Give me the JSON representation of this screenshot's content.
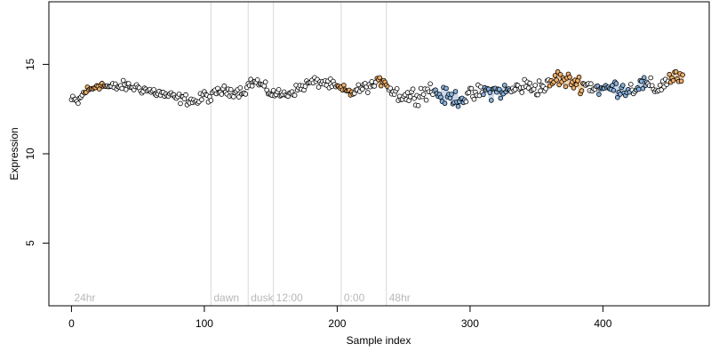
{
  "chart_data": {
    "type": "scatter",
    "title": "",
    "xlabel": "Sample index",
    "ylabel": "Expression",
    "xlim": [
      -17,
      480
    ],
    "ylim": [
      1.5,
      18.5
    ],
    "x_ticks": [
      0,
      100,
      200,
      300,
      400
    ],
    "y_ticks": [
      5,
      10,
      15
    ],
    "grid": false,
    "legend": "none",
    "colors": {
      "point_outline": "#000000",
      "point_plain": "#ffffff",
      "point_orange": "#f2b06a",
      "point_blue": "#8ab4e0",
      "band_orange": "#e8b070",
      "band_blue": "#9ab8e0",
      "annotation_line": "#d8d8d8",
      "annotation_text": "#b8b8b8"
    },
    "annotations": [
      {
        "x": 0,
        "label": "24hr",
        "line": false
      },
      {
        "x": 105,
        "label": "dawn",
        "line": true
      },
      {
        "x": 133,
        "label": "dusk",
        "line": true
      },
      {
        "x": 152,
        "label": "12:00",
        "line": true
      },
      {
        "x": 203,
        "label": "0:00",
        "line": true
      },
      {
        "x": 237,
        "label": "48hr",
        "line": true
      }
    ],
    "highlight_segments": [
      {
        "from": 10,
        "to": 26,
        "color": "orange"
      },
      {
        "from": 200,
        "to": 212,
        "color": "orange"
      },
      {
        "from": 230,
        "to": 238,
        "color": "orange"
      },
      {
        "from": 274,
        "to": 296,
        "color": "blue"
      },
      {
        "from": 310,
        "to": 330,
        "color": "blue"
      },
      {
        "from": 360,
        "to": 385,
        "color": "orange"
      },
      {
        "from": 396,
        "to": 420,
        "color": "blue"
      },
      {
        "from": 425,
        "to": 433,
        "color": "blue"
      },
      {
        "from": 450,
        "to": 460,
        "color": "orange"
      }
    ],
    "series": [
      {
        "anchors_x": [
          0,
          5,
          10,
          15,
          20,
          25,
          30,
          40,
          50,
          60,
          70,
          80,
          90,
          95,
          100,
          105,
          110,
          120,
          130,
          135,
          140,
          150,
          160,
          170,
          180,
          190,
          200,
          210,
          220,
          230,
          235,
          240,
          250,
          260,
          270,
          280,
          290,
          300,
          310,
          320,
          330,
          340,
          350,
          360,
          365,
          370,
          380,
          390,
          400,
          410,
          420,
          430,
          440,
          450,
          455,
          460
        ],
        "anchors_y": [
          13.0,
          12.9,
          13.5,
          13.6,
          13.9,
          13.8,
          13.7,
          13.8,
          13.7,
          13.5,
          13.3,
          13.1,
          13.0,
          12.9,
          13.3,
          13.1,
          13.5,
          13.5,
          13.5,
          14.0,
          14.0,
          13.4,
          13.3,
          13.6,
          14.0,
          14.0,
          13.7,
          13.4,
          13.7,
          13.9,
          14.2,
          13.6,
          13.2,
          13.3,
          13.6,
          13.2,
          13.1,
          13.2,
          13.5,
          13.5,
          13.5,
          13.8,
          13.7,
          13.8,
          14.3,
          14.1,
          14.0,
          13.8,
          13.6,
          13.7,
          13.6,
          13.9,
          13.6,
          14.2,
          14.4,
          14.0
        ],
        "n_points": 461,
        "noise": 0.28
      }
    ]
  }
}
